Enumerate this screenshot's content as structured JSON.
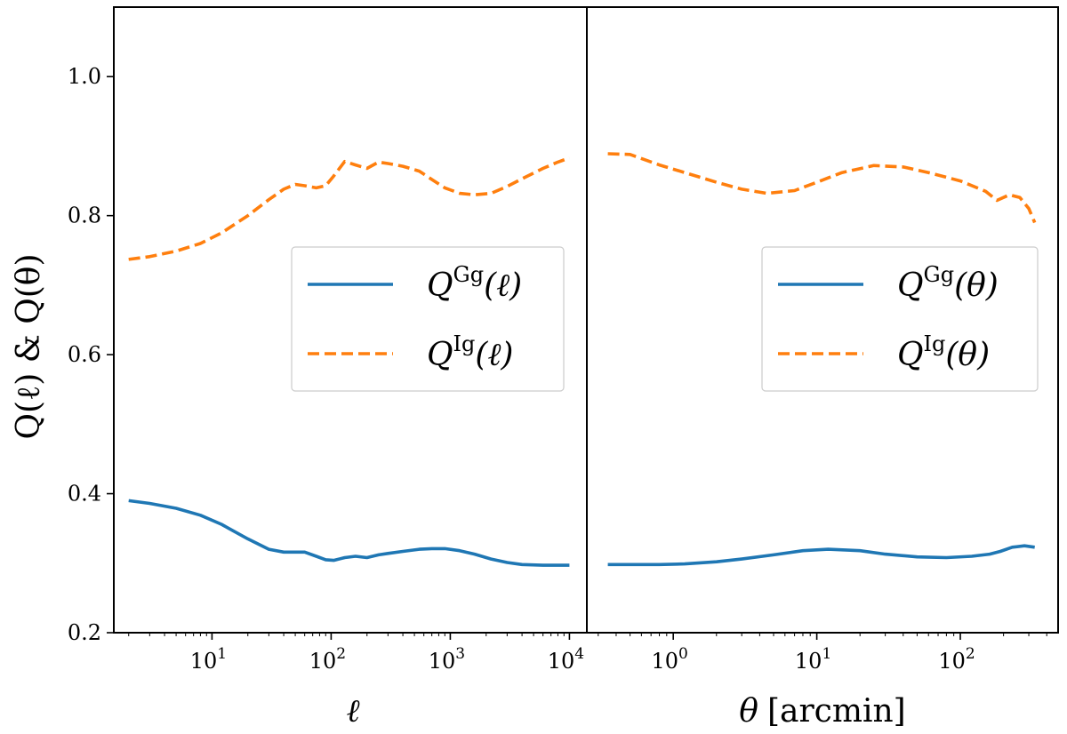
{
  "chart_data": [
    {
      "type": "line",
      "panel": "left",
      "xscale": "log",
      "xlim": [
        1.5,
        14000
      ],
      "ylim": [
        0.2,
        1.1
      ],
      "xlabel": "ℓ",
      "ylabel": "Q(ℓ) & Q(θ)",
      "yticks": [
        0.2,
        0.4,
        0.6,
        0.8,
        1.0
      ],
      "ytick_labels": [
        "0.2",
        "0.4",
        "0.6",
        "0.8",
        "1.0"
      ],
      "xticks": [
        {
          "value": 10,
          "base": "10",
          "exp": "1"
        },
        {
          "value": 100,
          "base": "10",
          "exp": "2"
        },
        {
          "value": 1000,
          "base": "10",
          "exp": "3"
        },
        {
          "value": 10000,
          "base": "10",
          "exp": "4"
        }
      ],
      "legend": {
        "position": "center-right"
      },
      "series": [
        {
          "name": "Q^Gg(ℓ)",
          "label_main": "Q",
          "label_sup": "Gg",
          "label_arg": "(ℓ)",
          "color": "#1f77b4",
          "style": "solid",
          "x": [
            2,
            3,
            5,
            8,
            12,
            20,
            30,
            40,
            50,
            60,
            75,
            90,
            105,
            130,
            160,
            200,
            250,
            300,
            400,
            550,
            700,
            900,
            1200,
            1600,
            2200,
            3000,
            4000,
            6000,
            8000,
            10000
          ],
          "y": [
            0.39,
            0.386,
            0.379,
            0.369,
            0.356,
            0.335,
            0.32,
            0.316,
            0.316,
            0.316,
            0.31,
            0.305,
            0.304,
            0.308,
            0.31,
            0.308,
            0.312,
            0.314,
            0.317,
            0.32,
            0.321,
            0.321,
            0.318,
            0.313,
            0.306,
            0.301,
            0.298,
            0.297,
            0.297,
            0.297
          ]
        },
        {
          "name": "Q^Ig(ℓ)",
          "label_main": "Q",
          "label_sup": "Ig",
          "label_arg": "(ℓ)",
          "color": "#ff7f0e",
          "style": "dashed",
          "x": [
            2,
            3,
            5,
            8,
            12,
            20,
            30,
            40,
            50,
            60,
            75,
            90,
            105,
            130,
            160,
            200,
            250,
            300,
            400,
            550,
            700,
            900,
            1200,
            1600,
            2200,
            3000,
            4000,
            6000,
            8000,
            10000
          ],
          "y": [
            0.737,
            0.741,
            0.749,
            0.76,
            0.775,
            0.8,
            0.823,
            0.838,
            0.845,
            0.843,
            0.84,
            0.843,
            0.857,
            0.878,
            0.873,
            0.868,
            0.877,
            0.875,
            0.871,
            0.864,
            0.852,
            0.84,
            0.832,
            0.83,
            0.832,
            0.842,
            0.853,
            0.868,
            0.877,
            0.883
          ]
        }
      ]
    },
    {
      "type": "line",
      "panel": "right",
      "xscale": "log",
      "xlim": [
        0.25,
        480
      ],
      "ylim": [
        0.2,
        1.1
      ],
      "xlabel_symbol": "θ",
      "xlabel_unit": "[arcmin]",
      "xticks": [
        {
          "value": 1,
          "base": "10",
          "exp": "0"
        },
        {
          "value": 10,
          "base": "10",
          "exp": "1"
        },
        {
          "value": 100,
          "base": "10",
          "exp": "2"
        }
      ],
      "legend": {
        "position": "center-right"
      },
      "series": [
        {
          "name": "Q^Gg(θ)",
          "label_main": "Q",
          "label_sup": "Gg",
          "label_arg": "(θ)",
          "color": "#1f77b4",
          "style": "solid",
          "x": [
            0.35,
            0.5,
            0.8,
            1.2,
            2,
            3,
            5,
            8,
            12,
            20,
            30,
            50,
            80,
            120,
            160,
            190,
            230,
            280,
            330
          ],
          "y": [
            0.298,
            0.298,
            0.298,
            0.299,
            0.302,
            0.306,
            0.312,
            0.318,
            0.32,
            0.318,
            0.313,
            0.309,
            0.308,
            0.31,
            0.313,
            0.317,
            0.323,
            0.325,
            0.323
          ]
        },
        {
          "name": "Q^Ig(θ)",
          "label_main": "Q",
          "label_sup": "Ig",
          "label_arg": "(θ)",
          "color": "#ff7f0e",
          "style": "dashed",
          "x": [
            0.35,
            0.5,
            0.8,
            1.2,
            2,
            3,
            4.5,
            7,
            10,
            15,
            25,
            40,
            60,
            100,
            150,
            180,
            220,
            260,
            300,
            330
          ],
          "y": [
            0.889,
            0.888,
            0.873,
            0.862,
            0.848,
            0.838,
            0.832,
            0.836,
            0.848,
            0.862,
            0.872,
            0.87,
            0.862,
            0.85,
            0.835,
            0.822,
            0.83,
            0.826,
            0.81,
            0.79
          ]
        }
      ]
    }
  ]
}
